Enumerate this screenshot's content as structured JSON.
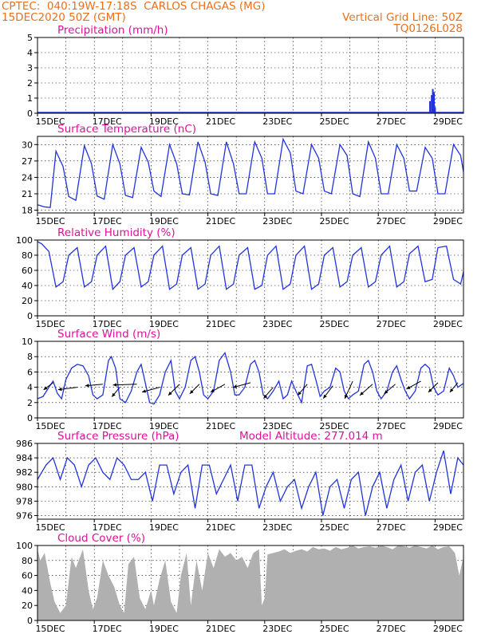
{
  "header": {
    "line1_left": "CPTEC:  040:19W-17:18S  CARLOS CHAGAS (MG)",
    "line2_left": "15DEC2020 50Z (GMT)",
    "line2_right": "Vertical Grid Line: 50Z",
    "line3_right": "TQ0126L028"
  },
  "colors": {
    "header": "#e8701c",
    "title": "#e0109a",
    "line": "#2233dd",
    "cloud": "#b0b0b0",
    "arrow": "#000000"
  },
  "chart_data": [
    {
      "id": "precip",
      "type": "bar",
      "title": "Precipitation (mm/h)",
      "ylim": [
        0,
        5
      ],
      "yticks": [
        0,
        1,
        2,
        3,
        4,
        5
      ],
      "xticks": [
        "15DEC",
        "17DEC",
        "19DEC",
        "21DEC",
        "23DEC",
        "25DEC",
        "27DEC",
        "29DEC"
      ],
      "xlim_days": [
        15,
        30
      ],
      "x_days": [
        28.82,
        28.88,
        28.92,
        28.96,
        29.0
      ],
      "values": [
        0.8,
        1.2,
        1.6,
        1.4,
        0.4
      ]
    },
    {
      "id": "temp",
      "type": "line",
      "title": "Surface Temperature (nC)",
      "ylim": [
        17.5,
        31.5
      ],
      "yticks": [
        18,
        21,
        24,
        27,
        30
      ],
      "xticks": [
        "15DEC",
        "17DEC",
        "19DEC",
        "21DEC",
        "23DEC",
        "25DEC",
        "27DEC",
        "29DEC"
      ],
      "x_days": [
        15.0,
        15.25,
        15.45,
        15.65,
        15.9,
        16.1,
        16.35,
        16.65,
        16.9,
        17.1,
        17.35,
        17.65,
        17.9,
        18.1,
        18.35,
        18.65,
        18.9,
        19.1,
        19.35,
        19.65,
        19.9,
        20.1,
        20.35,
        20.65,
        20.9,
        21.1,
        21.35,
        21.65,
        21.9,
        22.1,
        22.35,
        22.65,
        22.9,
        23.1,
        23.35,
        23.65,
        23.9,
        24.1,
        24.35,
        24.65,
        24.9,
        25.1,
        25.35,
        25.65,
        25.9,
        26.1,
        26.35,
        26.65,
        26.9,
        27.1,
        27.35,
        27.65,
        27.9,
        28.1,
        28.35,
        28.65,
        28.9,
        29.1,
        29.35,
        29.65,
        29.9,
        30.0
      ],
      "values": [
        19.0,
        18.6,
        18.5,
        28.8,
        26.0,
        20.5,
        19.8,
        29.8,
        26.5,
        20.6,
        20.0,
        30.0,
        26.5,
        20.7,
        20.3,
        29.5,
        26.8,
        21.5,
        20.5,
        30.0,
        26.5,
        21.0,
        20.8,
        30.5,
        26.8,
        21.0,
        20.7,
        30.5,
        26.5,
        21.0,
        21.0,
        30.5,
        27.5,
        21.0,
        21.0,
        31.0,
        28.5,
        21.5,
        21.0,
        30.0,
        27.5,
        21.5,
        21.0,
        30.0,
        28.0,
        21.0,
        20.5,
        30.5,
        27.5,
        21.0,
        21.0,
        30.0,
        27.5,
        21.5,
        21.5,
        29.5,
        27.5,
        21.0,
        21.0,
        30.0,
        28.0,
        25.0
      ]
    },
    {
      "id": "rh",
      "type": "line",
      "title": "Relative Humidity (%)",
      "ylim": [
        0,
        100
      ],
      "yticks": [
        0,
        20,
        40,
        60,
        80,
        100
      ],
      "xticks": [
        "15DEC",
        "17DEC",
        "19DEC",
        "21DEC",
        "23DEC",
        "25DEC",
        "27DEC",
        "29DEC"
      ],
      "x_days": [
        15.0,
        15.15,
        15.4,
        15.65,
        15.9,
        16.1,
        16.4,
        16.65,
        16.9,
        17.1,
        17.4,
        17.65,
        17.9,
        18.1,
        18.4,
        18.65,
        18.9,
        19.1,
        19.4,
        19.65,
        19.9,
        20.1,
        20.4,
        20.65,
        20.9,
        21.1,
        21.4,
        21.65,
        21.9,
        22.1,
        22.4,
        22.65,
        22.9,
        23.1,
        23.4,
        23.65,
        23.9,
        24.1,
        24.4,
        24.65,
        24.9,
        25.1,
        25.4,
        25.65,
        25.9,
        26.1,
        26.4,
        26.65,
        26.9,
        27.1,
        27.4,
        27.65,
        27.9,
        28.1,
        28.4,
        28.65,
        28.9,
        29.1,
        29.4,
        29.65,
        29.9,
        30.0
      ],
      "values": [
        98,
        95,
        85,
        38,
        45,
        80,
        90,
        38,
        45,
        80,
        92,
        35,
        45,
        80,
        90,
        38,
        45,
        80,
        92,
        35,
        42,
        80,
        90,
        35,
        42,
        80,
        92,
        35,
        42,
        80,
        90,
        35,
        40,
        80,
        92,
        35,
        42,
        80,
        92,
        35,
        42,
        80,
        90,
        38,
        45,
        80,
        90,
        38,
        45,
        80,
        92,
        38,
        45,
        82,
        92,
        45,
        48,
        90,
        92,
        48,
        42,
        58
      ]
    },
    {
      "id": "wind",
      "type": "line",
      "title": "Surface Wind (m/s)",
      "ylim": [
        0,
        10
      ],
      "yticks": [
        0,
        2,
        4,
        6,
        8,
        10
      ],
      "xticks": [
        "15DEC",
        "17DEC",
        "19DEC",
        "21DEC",
        "23DEC",
        "25DEC",
        "27DEC",
        "29DEC"
      ],
      "x_days": [
        15.0,
        15.2,
        15.4,
        15.55,
        15.7,
        15.85,
        16.0,
        16.2,
        16.4,
        16.6,
        16.8,
        16.95,
        17.1,
        17.3,
        17.5,
        17.6,
        17.75,
        17.9,
        18.1,
        18.3,
        18.5,
        18.65,
        18.8,
        18.95,
        19.1,
        19.3,
        19.5,
        19.7,
        19.85,
        20.0,
        20.2,
        20.4,
        20.55,
        20.7,
        20.85,
        21.0,
        21.2,
        21.4,
        21.6,
        21.8,
        21.95,
        22.1,
        22.3,
        22.5,
        22.65,
        22.8,
        22.95,
        23.1,
        23.3,
        23.5,
        23.65,
        23.8,
        23.95,
        24.1,
        24.3,
        24.5,
        24.65,
        24.8,
        24.95,
        25.1,
        25.3,
        25.5,
        25.65,
        25.8,
        25.95,
        26.1,
        26.3,
        26.5,
        26.65,
        26.8,
        26.95,
        27.1,
        27.3,
        27.5,
        27.65,
        27.8,
        27.95,
        28.1,
        28.3,
        28.5,
        28.65,
        28.8,
        28.95,
        29.1,
        29.3,
        29.5,
        29.65,
        29.8,
        30.0
      ],
      "values": [
        2.5,
        2.8,
        4.0,
        4.8,
        3.2,
        2.5,
        5.0,
        6.5,
        7.0,
        6.8,
        5.5,
        3.0,
        2.5,
        3.0,
        7.5,
        8.0,
        6.5,
        2.5,
        2.0,
        3.5,
        6.0,
        7.0,
        4.5,
        2.0,
        1.8,
        3.0,
        6.0,
        7.5,
        3.5,
        2.5,
        4.0,
        7.5,
        8.0,
        6.0,
        3.0,
        2.5,
        3.5,
        7.5,
        8.5,
        6.0,
        3.0,
        3.0,
        4.0,
        7.0,
        7.5,
        6.0,
        3.0,
        2.5,
        3.5,
        4.8,
        2.5,
        3.0,
        4.8,
        3.5,
        2.0,
        6.8,
        7.0,
        5.0,
        2.8,
        3.5,
        4.0,
        6.5,
        6.0,
        3.5,
        2.5,
        3.0,
        3.5,
        7.0,
        7.5,
        6.0,
        3.5,
        2.5,
        3.5,
        6.0,
        6.8,
        5.0,
        3.5,
        2.5,
        3.5,
        6.5,
        7.0,
        6.5,
        4.0,
        3.0,
        3.5,
        6.5,
        5.5,
        4.0,
        4.5
      ],
      "vectors": [
        {
          "x_day": 15.55,
          "y": 4.6,
          "dx": -12,
          "dy": 9
        },
        {
          "x_day": 16.4,
          "y": 4.0,
          "dx": -24,
          "dy": 3
        },
        {
          "x_day": 17.3,
          "y": 4.4,
          "dx": -22,
          "dy": 2
        },
        {
          "x_day": 17.9,
          "y": 4.0,
          "dx": -10,
          "dy": 12
        },
        {
          "x_day": 18.5,
          "y": 4.4,
          "dx": -30,
          "dy": 1
        },
        {
          "x_day": 19.3,
          "y": 4.0,
          "dx": -22,
          "dy": 6
        },
        {
          "x_day": 20.0,
          "y": 4.4,
          "dx": -14,
          "dy": 14
        },
        {
          "x_day": 20.7,
          "y": 4.4,
          "dx": -12,
          "dy": 12
        },
        {
          "x_day": 21.6,
          "y": 4.4,
          "dx": -18,
          "dy": 10
        },
        {
          "x_day": 22.5,
          "y": 4.6,
          "dx": -22,
          "dy": 6
        },
        {
          "x_day": 23.3,
          "y": 4.0,
          "dx": -12,
          "dy": 14
        },
        {
          "x_day": 24.5,
          "y": 4.4,
          "dx": -12,
          "dy": 14
        },
        {
          "x_day": 25.4,
          "y": 4.2,
          "dx": -12,
          "dy": 16
        },
        {
          "x_day": 26.1,
          "y": 4.8,
          "dx": -10,
          "dy": 22
        },
        {
          "x_day": 26.8,
          "y": 4.4,
          "dx": -16,
          "dy": 14
        },
        {
          "x_day": 27.6,
          "y": 4.4,
          "dx": -14,
          "dy": 12
        },
        {
          "x_day": 28.5,
          "y": 4.8,
          "dx": -18,
          "dy": 10
        },
        {
          "x_day": 29.1,
          "y": 4.6,
          "dx": -12,
          "dy": 12
        },
        {
          "x_day": 29.8,
          "y": 4.6,
          "dx": -10,
          "dy": 12
        }
      ]
    },
    {
      "id": "pressure",
      "type": "line",
      "title": "Surface Pressure (hPa)",
      "subtitle": "Model Altitude: 277.014 m",
      "ylim": [
        975.5,
        986
      ],
      "yticks": [
        976,
        978,
        980,
        982,
        984,
        986
      ],
      "xticks": [
        "15DEC",
        "17DEC",
        "19DEC",
        "21DEC",
        "23DEC",
        "25DEC",
        "27DEC",
        "29DEC"
      ],
      "x_days": [
        15.0,
        15.3,
        15.55,
        15.8,
        16.05,
        16.3,
        16.55,
        16.8,
        17.05,
        17.3,
        17.55,
        17.8,
        18.05,
        18.3,
        18.55,
        18.8,
        19.05,
        19.3,
        19.55,
        19.8,
        20.05,
        20.3,
        20.55,
        20.8,
        21.05,
        21.3,
        21.55,
        21.8,
        22.05,
        22.3,
        22.55,
        22.8,
        23.05,
        23.3,
        23.55,
        23.8,
        24.05,
        24.3,
        24.55,
        24.8,
        25.05,
        25.3,
        25.55,
        25.8,
        26.05,
        26.3,
        26.55,
        26.8,
        27.05,
        27.3,
        27.55,
        27.8,
        28.05,
        28.3,
        28.55,
        28.8,
        29.05,
        29.3,
        29.55,
        29.8,
        30.0
      ],
      "values": [
        981,
        983,
        984,
        981,
        984,
        983,
        980,
        983,
        984,
        982,
        981,
        984,
        983,
        981,
        981,
        982,
        978,
        983,
        983,
        979,
        982,
        983,
        977,
        983,
        983,
        979,
        981,
        983,
        978,
        983,
        983,
        977,
        980,
        982,
        978,
        980,
        981,
        977,
        980,
        982,
        976,
        980,
        981,
        977,
        981,
        982,
        976,
        980,
        982,
        977,
        981,
        983,
        978,
        982,
        983,
        978,
        982,
        985,
        979,
        984,
        983
      ]
    },
    {
      "id": "cloud",
      "type": "area",
      "title": "Cloud Cover (%)",
      "ylim": [
        0,
        100
      ],
      "yticks": [
        0,
        20,
        40,
        60,
        80,
        100
      ],
      "xticks": [
        "15DEC",
        "17DEC",
        "19DEC",
        "21DEC",
        "23DEC",
        "25DEC",
        "27DEC",
        "29DEC"
      ],
      "x_days": [
        15.0,
        15.1,
        15.25,
        15.45,
        15.6,
        15.8,
        16.0,
        16.2,
        16.35,
        16.6,
        16.8,
        16.95,
        17.1,
        17.3,
        17.5,
        17.7,
        17.9,
        18.05,
        18.2,
        18.4,
        18.6,
        18.8,
        19.0,
        19.1,
        19.3,
        19.5,
        19.7,
        19.9,
        20.05,
        20.25,
        20.4,
        20.6,
        20.8,
        21.0,
        21.2,
        21.4,
        21.6,
        21.8,
        22.0,
        22.2,
        22.4,
        22.6,
        22.8,
        22.9,
        23.0,
        23.1,
        23.3,
        23.5,
        23.7,
        23.9,
        24.1,
        24.3,
        24.5,
        24.7,
        24.9,
        25.1,
        25.3,
        25.5,
        25.7,
        25.9,
        26.1,
        26.3,
        26.5,
        26.7,
        26.9,
        27.1,
        27.3,
        27.5,
        27.7,
        27.9,
        28.1,
        28.3,
        28.5,
        28.7,
        28.9,
        29.1,
        29.3,
        29.5,
        29.7,
        29.85,
        30.0
      ],
      "values": [
        95,
        80,
        90,
        50,
        25,
        10,
        20,
        85,
        70,
        95,
        40,
        15,
        30,
        80,
        60,
        45,
        20,
        10,
        75,
        85,
        30,
        15,
        40,
        20,
        55,
        80,
        25,
        10,
        60,
        90,
        20,
        80,
        40,
        90,
        70,
        95,
        85,
        90,
        80,
        85,
        70,
        90,
        95,
        20,
        30,
        88,
        90,
        92,
        95,
        90,
        93,
        95,
        92,
        98,
        95,
        96,
        93,
        98,
        95,
        97,
        100,
        96,
        98,
        99,
        97,
        100,
        98,
        95,
        100,
        99,
        97,
        100,
        98,
        96,
        100,
        95,
        98,
        99,
        90,
        60,
        85
      ]
    }
  ]
}
